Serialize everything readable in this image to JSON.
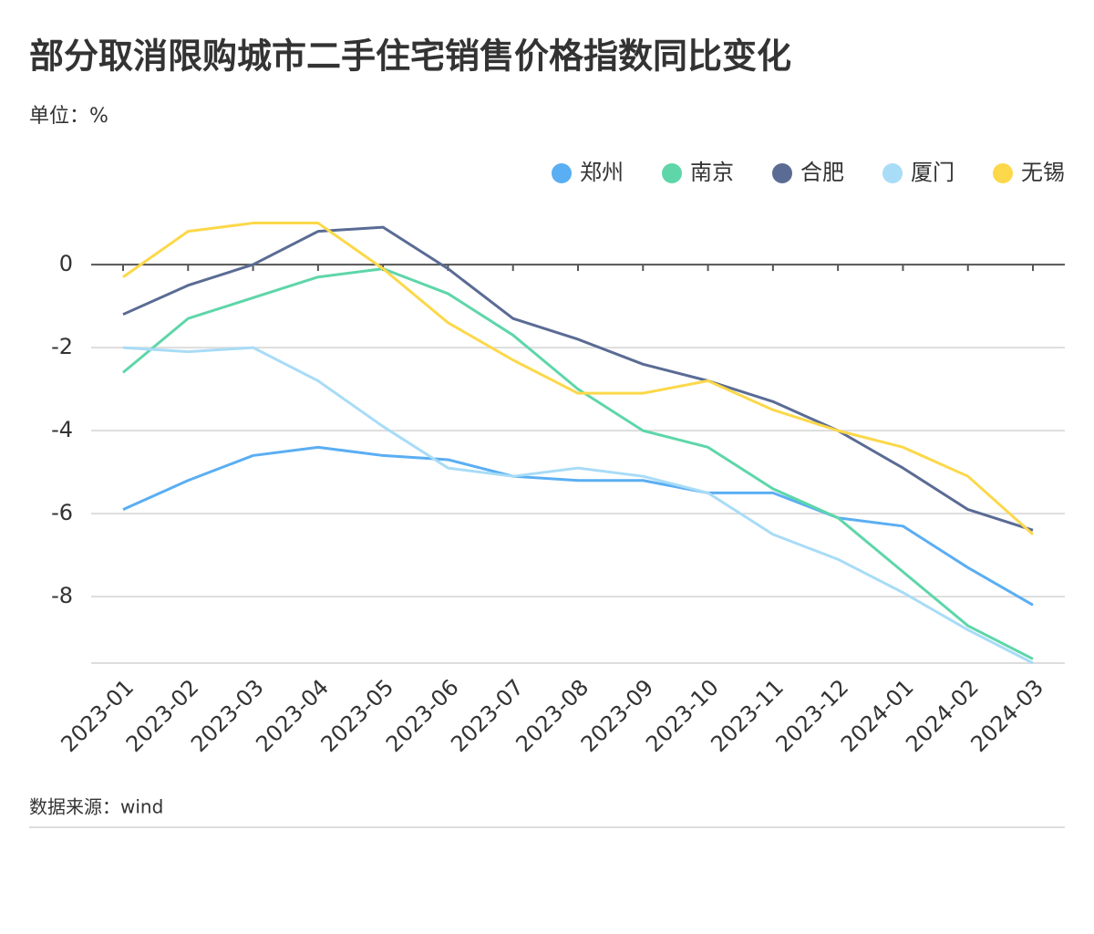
{
  "chart_data": {
    "type": "line",
    "title": "部分取消限购城市二手住宅销售价格指数同比变化",
    "subtitle": "单位：%",
    "source": "数据来源：wind",
    "categories": [
      "2023-01",
      "2023-02",
      "2023-03",
      "2023-04",
      "2023-05",
      "2023-06",
      "2023-07",
      "2023-08",
      "2023-09",
      "2023-10",
      "2023-11",
      "2023-12",
      "2024-01",
      "2024-02",
      "2024-03"
    ],
    "series": [
      {
        "name": "郑州",
        "color": "#5aaef3",
        "values": [
          -5.9,
          -5.2,
          -4.6,
          -4.4,
          -4.6,
          -4.7,
          -5.1,
          -5.2,
          -5.2,
          -5.5,
          -5.5,
          -6.1,
          -6.3,
          -7.3,
          -8.2
        ]
      },
      {
        "name": "南京",
        "color": "#5ed6a9",
        "values": [
          -2.6,
          -1.3,
          -0.8,
          -0.3,
          -0.1,
          -0.7,
          -1.7,
          -3.0,
          -4.0,
          -4.4,
          -5.4,
          -6.1,
          -7.4,
          -8.7,
          -9.5
        ]
      },
      {
        "name": "合肥",
        "color": "#5a6b94",
        "values": [
          -1.2,
          -0.5,
          0,
          0.8,
          0.9,
          -0.1,
          -1.3,
          -1.8,
          -2.4,
          -2.8,
          -3.3,
          -4.0,
          -4.9,
          -5.9,
          -6.4
        ]
      },
      {
        "name": "厦门",
        "color": "#a8dcf7",
        "values": [
          -2.0,
          -2.1,
          -2.0,
          -2.8,
          -3.9,
          -4.9,
          -5.1,
          -4.9,
          -5.1,
          -5.5,
          -6.5,
          -7.1,
          -7.9,
          -8.8,
          -9.6
        ]
      },
      {
        "name": "无锡",
        "color": "#fcd84a",
        "values": [
          -0.3,
          0.8,
          1.0,
          1.0,
          -0.1,
          -1.4,
          -2.3,
          -3.1,
          -3.1,
          -2.8,
          -3.5,
          -4.0,
          -4.4,
          -5.1,
          -6.5
        ]
      }
    ],
    "ylim": [
      -9.6,
      1.1
    ],
    "yticks": [
      0,
      -2,
      -4,
      -6,
      -8
    ],
    "grid": true,
    "legend": "top-right"
  }
}
